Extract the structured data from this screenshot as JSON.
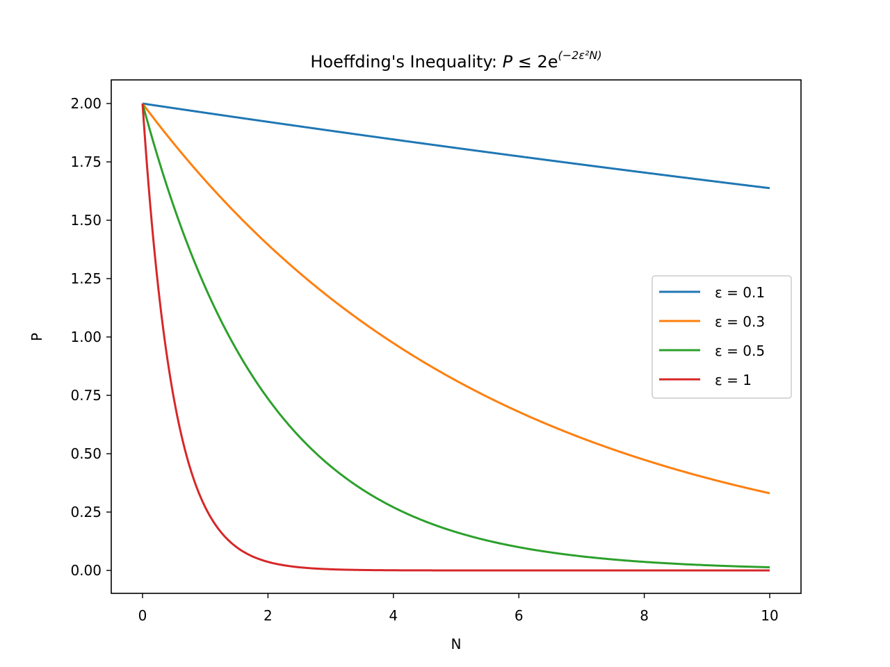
{
  "chart_data": {
    "type": "line",
    "title": "Hoeffding's Inequality: P ≤ 2e^(−2ε²N)",
    "title_parts": {
      "prefix": "Hoeffding's Inequality: ",
      "lhs": "P",
      "rel": " ≤ 2e",
      "exponent": "(−2ε²N)"
    },
    "xlabel": "N",
    "ylabel": "P",
    "xlim": [
      -0.5,
      10.5
    ],
    "ylim": [
      -0.1,
      2.1
    ],
    "xticks": [
      0,
      2,
      4,
      6,
      8,
      10
    ],
    "xtick_labels": [
      "0",
      "2",
      "4",
      "6",
      "8",
      "10"
    ],
    "yticks": [
      0.0,
      0.25,
      0.5,
      0.75,
      1.0,
      1.25,
      1.5,
      1.75,
      2.0
    ],
    "ytick_labels": [
      "0.00",
      "0.25",
      "0.50",
      "0.75",
      "1.00",
      "1.25",
      "1.50",
      "1.75",
      "2.00"
    ],
    "grid": false,
    "legend_position": "center right",
    "x": [
      0,
      0.5,
      1,
      1.5,
      2,
      2.5,
      3,
      3.5,
      4,
      4.5,
      5,
      5.5,
      6,
      6.5,
      7,
      7.5,
      8,
      8.5,
      9,
      9.5,
      10
    ],
    "series": [
      {
        "name": "ε = 0.1",
        "epsilon": 0.1,
        "color": "#1f77b4",
        "values": [
          2.0,
          1.98,
          1.96,
          1.941,
          1.922,
          1.902,
          1.884,
          1.865,
          1.846,
          1.828,
          1.81,
          1.792,
          1.774,
          1.756,
          1.739,
          1.721,
          1.704,
          1.688,
          1.671,
          1.654,
          1.637
        ]
      },
      {
        "name": "ε = 0.3",
        "epsilon": 0.3,
        "color": "#ff7f0e",
        "values": [
          2.0,
          1.828,
          1.671,
          1.527,
          1.395,
          1.275,
          1.165,
          1.065,
          0.973,
          0.89,
          0.813,
          0.743,
          0.679,
          0.621,
          0.567,
          0.518,
          0.474,
          0.433,
          0.396,
          0.362,
          0.331
        ]
      },
      {
        "name": "ε = 0.5",
        "epsilon": 0.5,
        "color": "#2ca02c",
        "values": [
          2.0,
          1.558,
          1.213,
          0.945,
          0.736,
          0.573,
          0.446,
          0.348,
          0.271,
          0.211,
          0.164,
          0.128,
          0.1,
          0.078,
          0.06,
          0.047,
          0.037,
          0.029,
          0.022,
          0.017,
          0.013
        ]
      },
      {
        "name": "ε = 1",
        "epsilon": 1,
        "color": "#d62728",
        "values": [
          2.0,
          0.736,
          0.271,
          0.1,
          0.037,
          0.013,
          0.005,
          0.002,
          0.001,
          0.0002,
          0.0001,
          0.0,
          0.0,
          0.0,
          0.0,
          0.0,
          0.0,
          0.0,
          0.0,
          0.0,
          0.0
        ]
      }
    ]
  }
}
